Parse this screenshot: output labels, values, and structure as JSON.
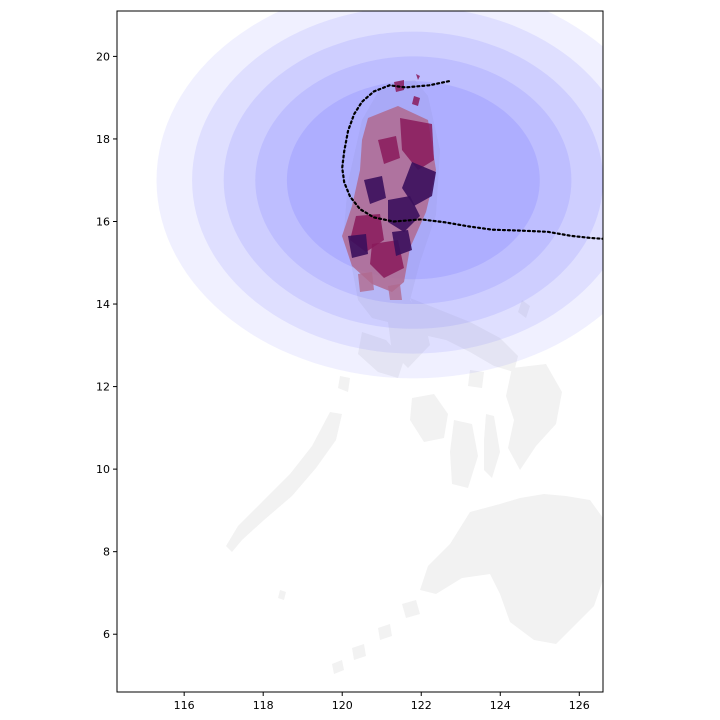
{
  "chart_data": {
    "type": "map",
    "title": "",
    "xlabel": "",
    "ylabel": "",
    "xlim": [
      114.3,
      126.6
    ],
    "ylim": [
      4.6,
      21.1
    ],
    "x_ticks": [
      116,
      118,
      120,
      122,
      124,
      126
    ],
    "y_ticks": [
      6,
      8,
      10,
      12,
      14,
      16,
      18,
      20
    ],
    "x_tick_labels": [
      "116",
      "118",
      "120",
      "122",
      "124",
      "126"
    ],
    "y_tick_labels": [
      "6",
      "8",
      "10",
      "12",
      "14",
      "16",
      "18",
      "20"
    ],
    "grid": false,
    "colors": {
      "land": "#f2f2f2",
      "wind_field": "#6b6bff",
      "track": "#000000",
      "damage_dark": "#3b0f5c",
      "damage_mid": "#8a1a5a",
      "damage_light": "#b06a8f"
    },
    "track": [
      [
        122.7,
        19.4
      ],
      [
        122.2,
        19.3
      ],
      [
        121.6,
        19.25
      ],
      [
        121.2,
        19.3
      ],
      [
        120.8,
        19.15
      ],
      [
        120.5,
        18.9
      ],
      [
        120.3,
        18.6
      ],
      [
        120.15,
        18.2
      ],
      [
        120.05,
        17.7
      ],
      [
        120.0,
        17.3
      ],
      [
        120.05,
        16.95
      ],
      [
        120.2,
        16.6
      ],
      [
        120.45,
        16.3
      ],
      [
        120.8,
        16.1
      ],
      [
        121.3,
        16.0
      ],
      [
        122.0,
        16.05
      ],
      [
        122.6,
        15.98
      ],
      [
        123.2,
        15.88
      ],
      [
        123.8,
        15.8
      ],
      [
        124.5,
        15.78
      ],
      [
        125.2,
        15.75
      ],
      [
        125.8,
        15.65
      ],
      [
        126.3,
        15.6
      ],
      [
        126.6,
        15.58
      ]
    ],
    "wind_field": {
      "center": [
        121.8,
        17.0
      ],
      "bands": [
        {
          "rx": 6.5,
          "ry": 4.8,
          "opacity": 0.1
        },
        {
          "rx": 5.6,
          "ry": 4.2,
          "opacity": 0.12
        },
        {
          "rx": 4.8,
          "ry": 3.6,
          "opacity": 0.14
        },
        {
          "rx": 4.0,
          "ry": 3.0,
          "opacity": 0.16
        },
        {
          "rx": 3.2,
          "ry": 2.4,
          "opacity": 0.18
        }
      ]
    }
  }
}
